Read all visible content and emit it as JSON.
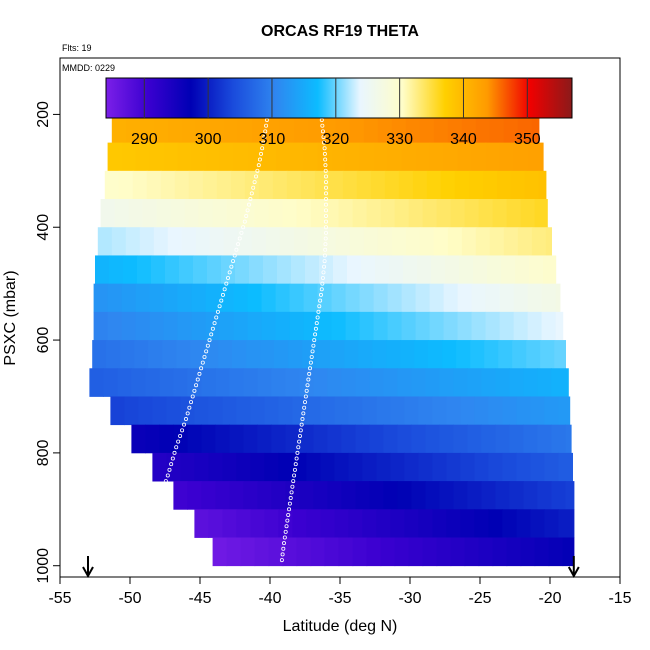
{
  "chart_data": {
    "type": "heatmap",
    "title": "ORCAS RF19 THETA",
    "flights_label": "Flts: 19",
    "date_label": "MMDD: 0229",
    "xlabel": "Latitude (deg N)",
    "ylabel": "PSXC (mbar)",
    "xlim": [
      -55,
      -15
    ],
    "ylim": [
      1020,
      100
    ],
    "y_reversed": true,
    "x_ticks": [
      -55,
      -50,
      -45,
      -40,
      -35,
      -30,
      -25,
      -20,
      -15
    ],
    "y_ticks": [
      200,
      400,
      600,
      800,
      1000
    ],
    "colorbar": {
      "range": [
        284,
        357
      ],
      "ticks": [
        290,
        300,
        310,
        320,
        330,
        340,
        350
      ],
      "colors": [
        "#7b1fe8",
        "#3a00d0",
        "#0000b4",
        "#1a4bdc",
        "#2f86f0",
        "#0cbcff",
        "#e9f6ff",
        "#fffdc8",
        "#ffd000",
        "#ff9a00",
        "#f00000",
        "#8b1a1a"
      ]
    },
    "levels": [
      {
        "pressure": 175,
        "lat_start": -50.5,
        "lat_end": -21.5,
        "theta_start": 343,
        "theta_end": 352
      },
      {
        "pressure": 225,
        "lat_start": -51.3,
        "lat_end": -20.8,
        "theta_start": 341,
        "theta_end": 346
      },
      {
        "pressure": 275,
        "lat_start": -51.6,
        "lat_end": -20.5,
        "theta_start": 338,
        "theta_end": 343
      },
      {
        "pressure": 325,
        "lat_start": -51.8,
        "lat_end": -20.3,
        "theta_start": 330,
        "theta_end": 339
      },
      {
        "pressure": 375,
        "lat_start": -52.1,
        "lat_end": -20.2,
        "theta_start": 326,
        "theta_end": 336
      },
      {
        "pressure": 425,
        "lat_start": -52.3,
        "lat_end": -19.9,
        "theta_start": 322,
        "theta_end": 333
      },
      {
        "pressure": 475,
        "lat_start": -52.5,
        "lat_end": -19.6,
        "theta_start": 316,
        "theta_end": 330
      },
      {
        "pressure": 525,
        "lat_start": -52.6,
        "lat_end": -19.3,
        "theta_start": 312,
        "theta_end": 327
      },
      {
        "pressure": 575,
        "lat_start": -52.6,
        "lat_end": -19.1,
        "theta_start": 310,
        "theta_end": 324
      },
      {
        "pressure": 625,
        "lat_start": -52.7,
        "lat_end": -18.9,
        "theta_start": 308,
        "theta_end": 320
      },
      {
        "pressure": 675,
        "lat_start": -52.9,
        "lat_end": -18.7,
        "theta_start": 306,
        "theta_end": 316
      },
      {
        "pressure": 725,
        "lat_start": -51.4,
        "lat_end": -18.6,
        "theta_start": 303,
        "theta_end": 313
      },
      {
        "pressure": 775,
        "lat_start": -49.9,
        "lat_end": -18.5,
        "theta_start": 296,
        "theta_end": 309
      },
      {
        "pressure": 825,
        "lat_start": -48.4,
        "lat_end": -18.4,
        "theta_start": 293,
        "theta_end": 306
      },
      {
        "pressure": 875,
        "lat_start": -46.9,
        "lat_end": -18.3,
        "theta_start": 290,
        "theta_end": 303
      },
      {
        "pressure": 925,
        "lat_start": -45.4,
        "lat_end": -18.3,
        "theta_start": 287,
        "theta_end": 300
      },
      {
        "pressure": 975,
        "lat_start": -44.1,
        "lat_end": -18.3,
        "theta_start": 285,
        "theta_end": 297
      }
    ],
    "flight_track": [
      [
        -49.5,
        1000
      ],
      [
        -49.2,
        980
      ],
      [
        -48.6,
        935
      ],
      [
        -48.0,
        890
      ],
      [
        -47.3,
        840
      ],
      [
        -46.7,
        790
      ],
      [
        -46.0,
        740
      ],
      [
        -45.4,
        690
      ],
      [
        -44.8,
        640
      ],
      [
        -44.2,
        590
      ],
      [
        -43.6,
        540
      ],
      [
        -43.0,
        490
      ],
      [
        -42.4,
        440
      ],
      [
        -41.8,
        390
      ],
      [
        -41.3,
        340
      ],
      [
        -40.8,
        290
      ],
      [
        -40.4,
        240
      ],
      [
        -40.1,
        190
      ],
      [
        -39.0,
        188
      ],
      [
        -37.0,
        188
      ],
      [
        -36.3,
        210
      ],
      [
        -36.1,
        260
      ],
      [
        -36.0,
        310
      ],
      [
        -36.0,
        360
      ],
      [
        -36.0,
        410
      ],
      [
        -36.1,
        460
      ],
      [
        -36.3,
        510
      ],
      [
        -36.6,
        560
      ],
      [
        -36.9,
        610
      ],
      [
        -37.2,
        660
      ],
      [
        -37.5,
        710
      ],
      [
        -37.8,
        760
      ],
      [
        -38.1,
        810
      ],
      [
        -38.4,
        860
      ],
      [
        -38.7,
        910
      ],
      [
        -39.0,
        960
      ],
      [
        -39.2,
        1000
      ]
    ],
    "markers": [
      {
        "lat": -53.0,
        "label": "start"
      },
      {
        "lat": -18.3,
        "label": "end"
      }
    ]
  }
}
